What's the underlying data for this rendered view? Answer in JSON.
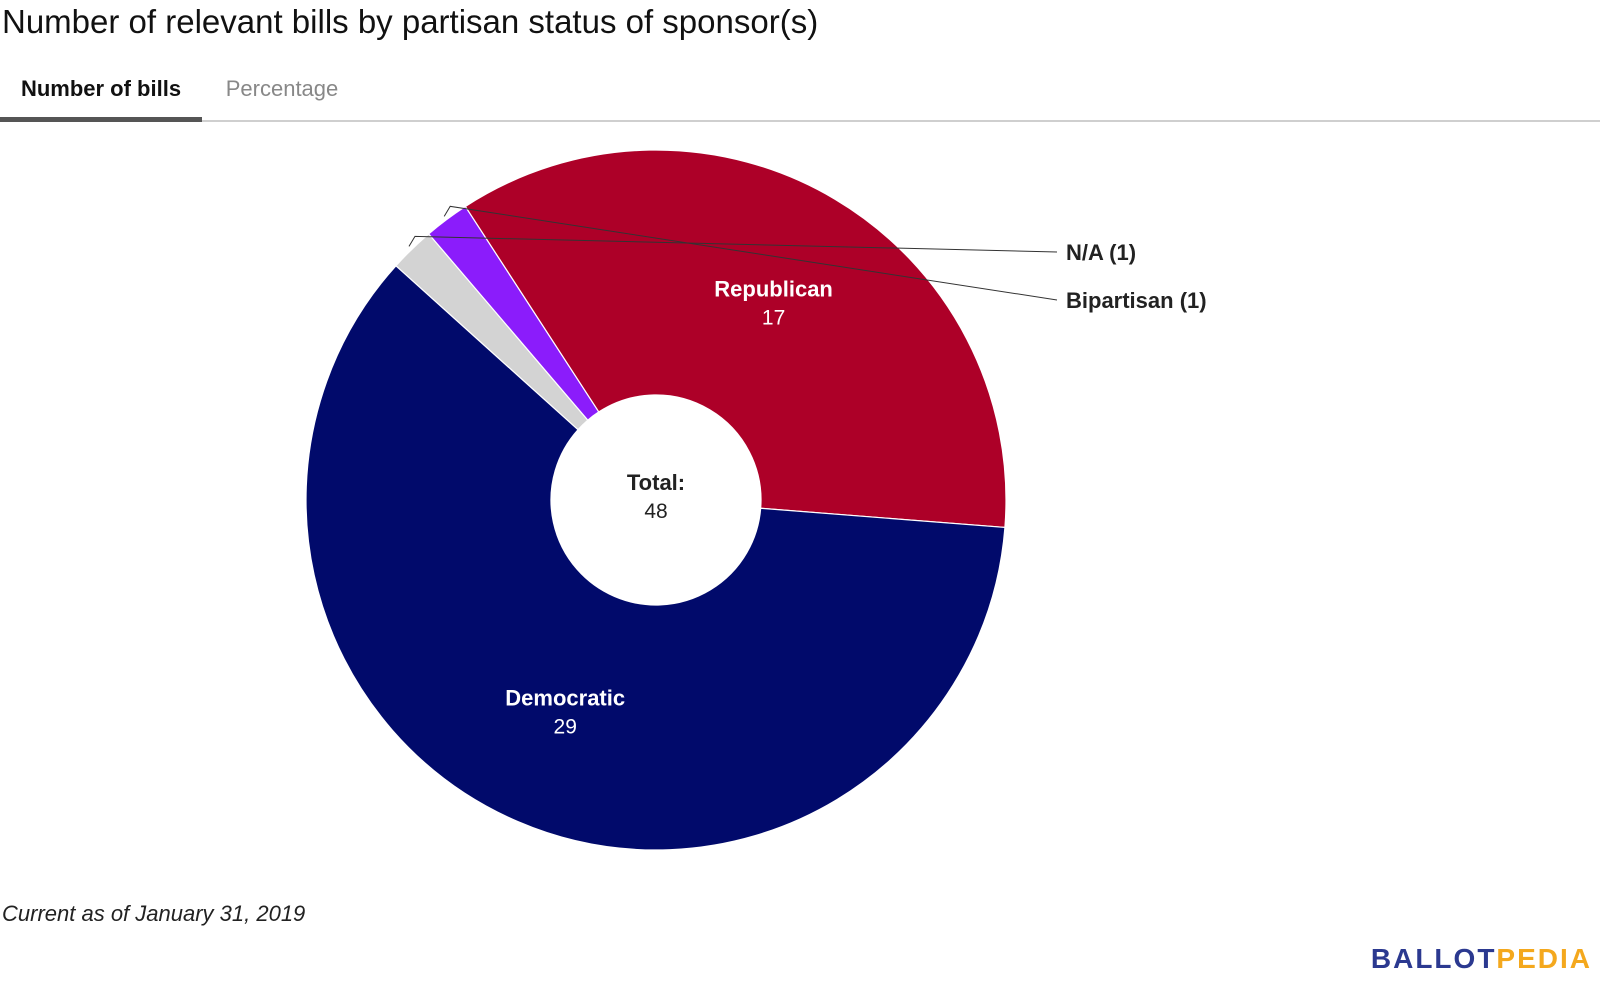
{
  "title": "Number of relevant bills by partisan status of sponsor(s)",
  "tabs": [
    {
      "label": "Number of bills",
      "active": true
    },
    {
      "label": "Percentage",
      "active": false
    }
  ],
  "footnote": "Current as of January 31, 2019",
  "brand": {
    "part1": "BALLOT",
    "part2": "PEDIA",
    "color1": "#2b3990",
    "color2": "#f4a81d"
  },
  "chart_data": {
    "type": "pie",
    "donut": true,
    "center_label": "Total:",
    "center_value": "48",
    "slices": [
      {
        "label": "N/A",
        "value": 1,
        "color": "#d3d3d3",
        "label_style": "outside",
        "display": "N/A (1)"
      },
      {
        "label": "Bipartisan",
        "value": 1,
        "color": "#8b1cfb",
        "label_style": "outside",
        "display": "Bipartisan (1)"
      },
      {
        "label": "Republican",
        "value": 17,
        "color": "#ad0028",
        "label_style": "inside"
      },
      {
        "label": "Democratic",
        "value": 29,
        "color": "#010a6b",
        "label_style": "inside"
      }
    ]
  }
}
